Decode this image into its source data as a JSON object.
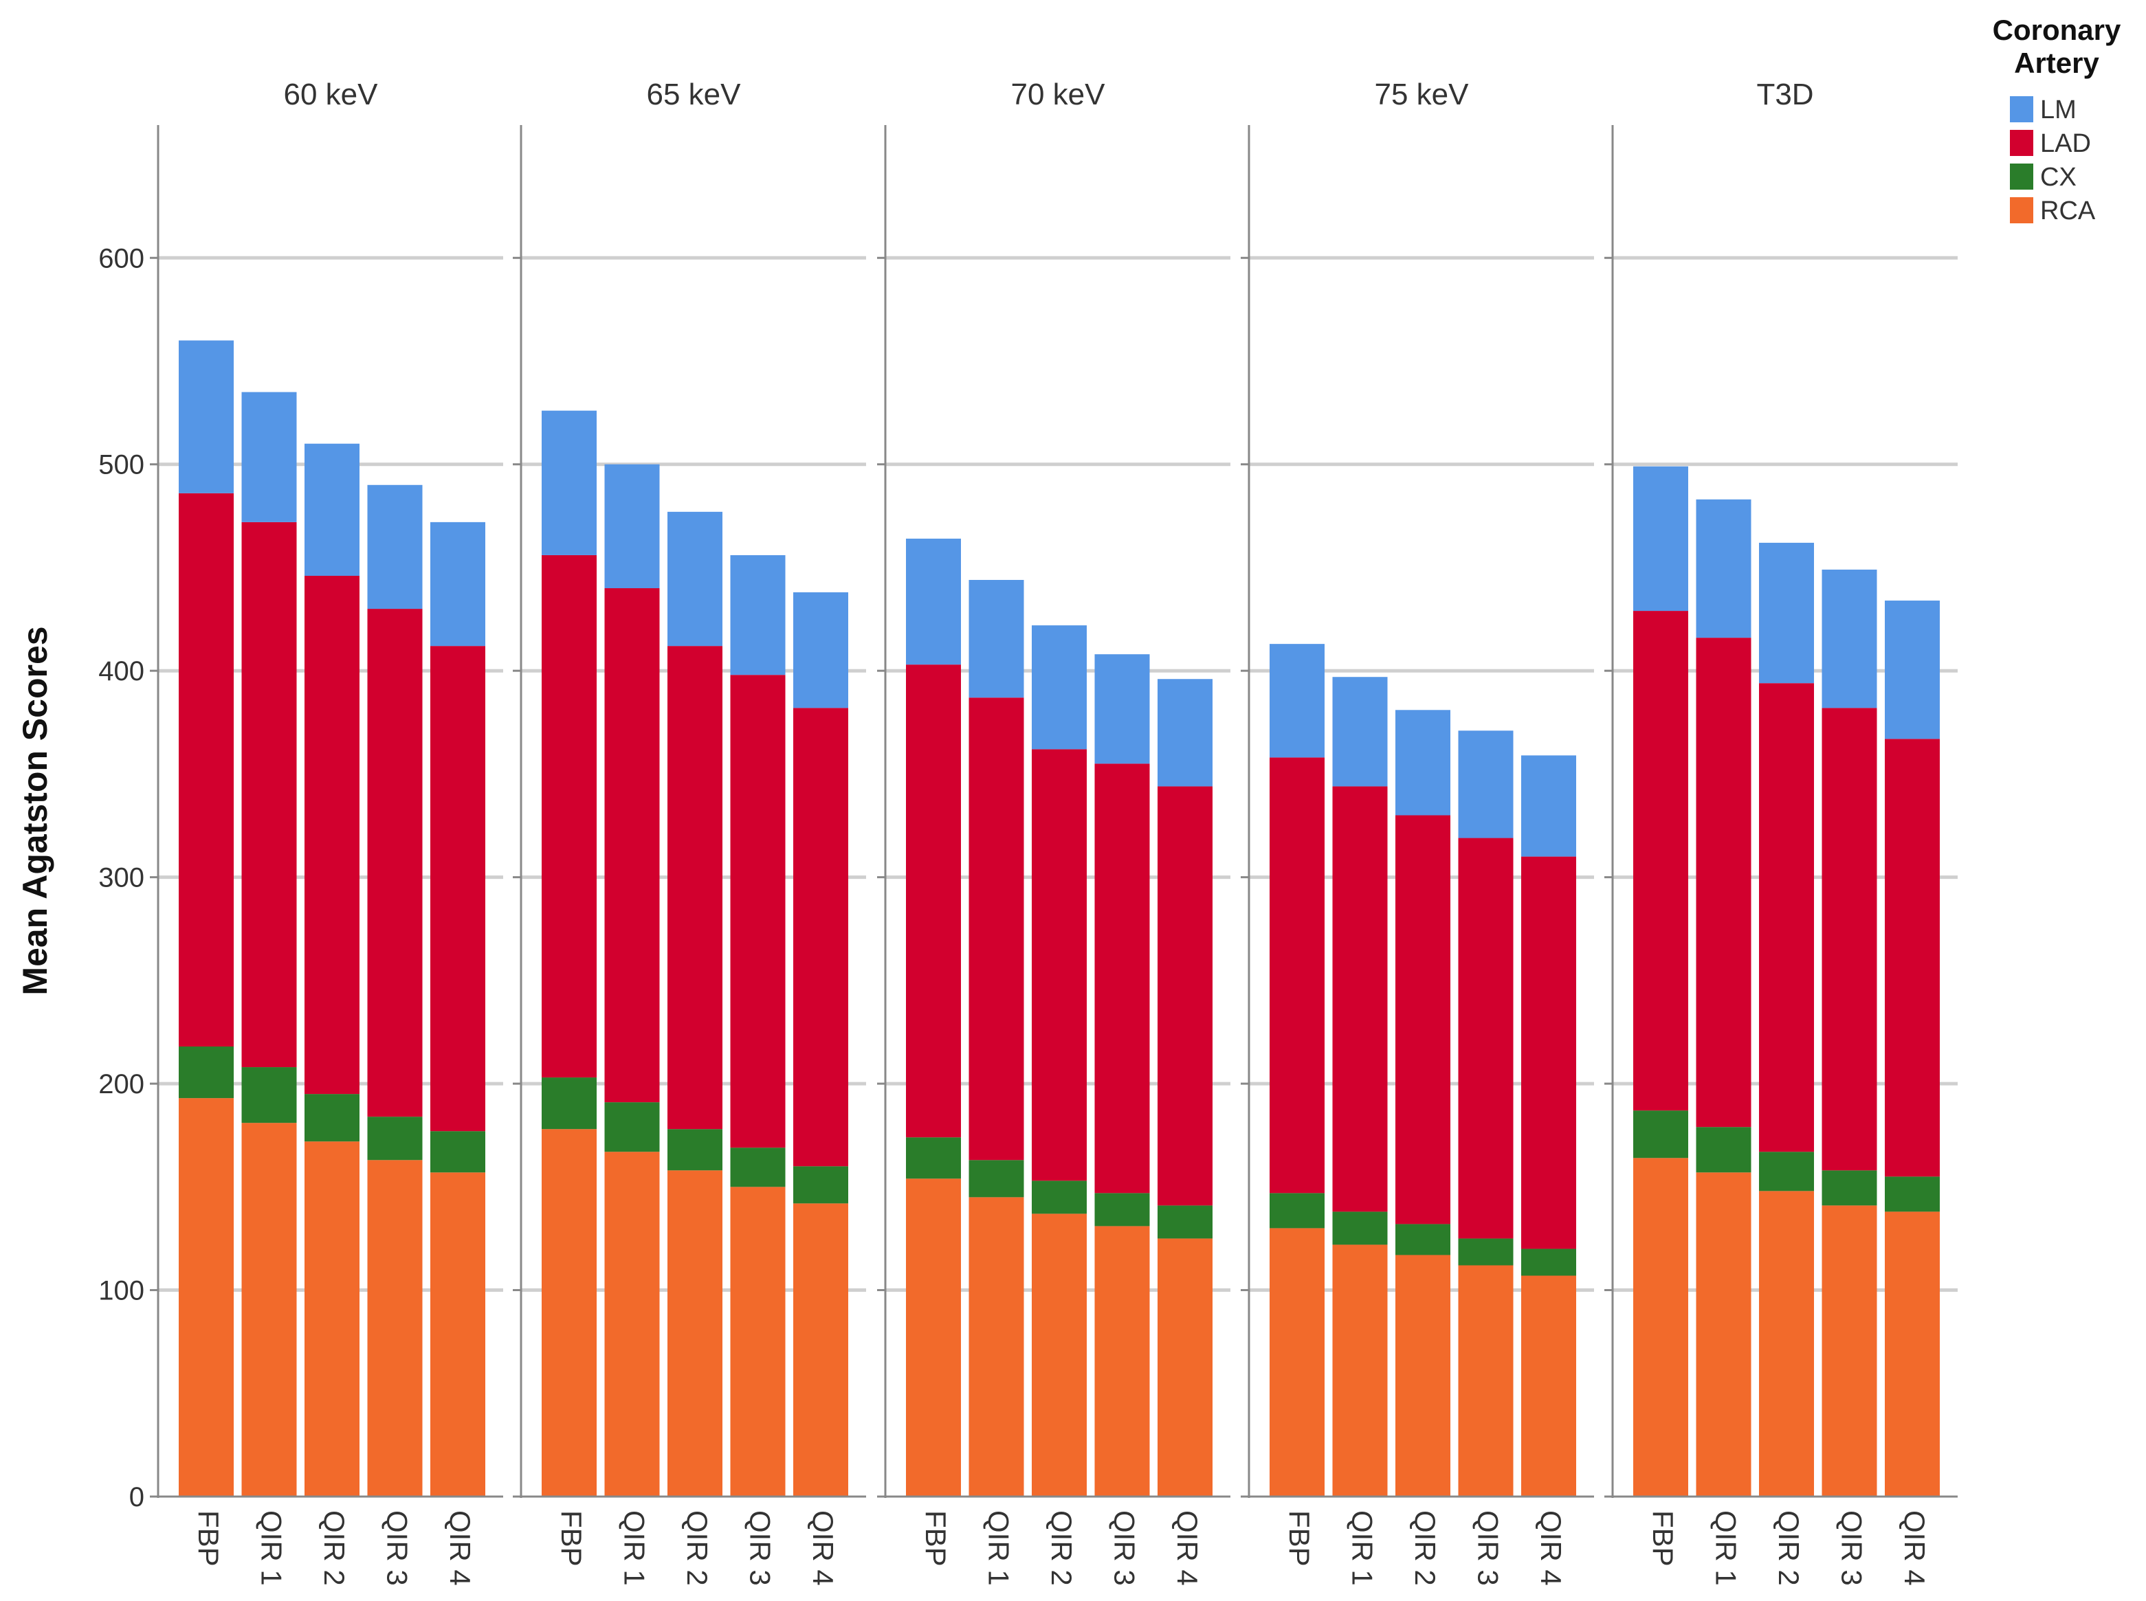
{
  "chart_data": {
    "type": "bar",
    "stacked": true,
    "ylabel": "Mean Agatston Scores",
    "xlabel": "",
    "ylim": [
      0,
      665
    ],
    "yticks": [
      0,
      100,
      200,
      300,
      400,
      500,
      600
    ],
    "grid": true,
    "legend": {
      "title_line1": "Coronary",
      "title_line2": "Artery",
      "placement": "top-right",
      "entries": [
        {
          "key": "LM",
          "label": "LM",
          "color": "#5596e6"
        },
        {
          "key": "LAD",
          "label": "LAD",
          "color": "#d2002e"
        },
        {
          "key": "CX",
          "label": "CX",
          "color": "#2a7d2a"
        },
        {
          "key": "RCA",
          "label": "RCA",
          "color": "#f26a2b"
        }
      ]
    },
    "categories": [
      "FBP",
      "QIR 1",
      "QIR 2",
      "QIR 3",
      "QIR 4"
    ],
    "panels": [
      {
        "title": "60 keV",
        "series": [
          {
            "name": "RCA",
            "values": [
              193,
              181,
              172,
              163,
              157
            ]
          },
          {
            "name": "CX",
            "values": [
              25,
              27,
              23,
              21,
              20
            ]
          },
          {
            "name": "LAD",
            "values": [
              268,
              264,
              251,
              246,
              235
            ]
          },
          {
            "name": "LM",
            "values": [
              74,
              63,
              64,
              60,
              60
            ]
          }
        ]
      },
      {
        "title": "65 keV",
        "series": [
          {
            "name": "RCA",
            "values": [
              178,
              167,
              158,
              150,
              142
            ]
          },
          {
            "name": "CX",
            "values": [
              25,
              24,
              20,
              19,
              18
            ]
          },
          {
            "name": "LAD",
            "values": [
              253,
              249,
              234,
              229,
              222
            ]
          },
          {
            "name": "LM",
            "values": [
              70,
              60,
              65,
              58,
              56
            ]
          }
        ]
      },
      {
        "title": "70 keV",
        "series": [
          {
            "name": "RCA",
            "values": [
              154,
              145,
              137,
              131,
              125
            ]
          },
          {
            "name": "CX",
            "values": [
              20,
              18,
              16,
              16,
              16
            ]
          },
          {
            "name": "LAD",
            "values": [
              229,
              224,
              209,
              208,
              203
            ]
          },
          {
            "name": "LM",
            "values": [
              61,
              57,
              60,
              53,
              52
            ]
          }
        ]
      },
      {
        "title": "75 keV",
        "series": [
          {
            "name": "RCA",
            "values": [
              130,
              122,
              117,
              112,
              107
            ]
          },
          {
            "name": "CX",
            "values": [
              17,
              16,
              15,
              13,
              13
            ]
          },
          {
            "name": "LAD",
            "values": [
              211,
              206,
              198,
              194,
              190
            ]
          },
          {
            "name": "LM",
            "values": [
              55,
              53,
              51,
              52,
              49
            ]
          }
        ]
      },
      {
        "title": "T3D",
        "series": [
          {
            "name": "RCA",
            "values": [
              164,
              157,
              148,
              141,
              138
            ]
          },
          {
            "name": "CX",
            "values": [
              23,
              22,
              19,
              17,
              17
            ]
          },
          {
            "name": "LAD",
            "values": [
              242,
              237,
              227,
              224,
              212
            ]
          },
          {
            "name": "LM",
            "values": [
              70,
              67,
              68,
              67,
              67
            ]
          }
        ]
      }
    ]
  }
}
